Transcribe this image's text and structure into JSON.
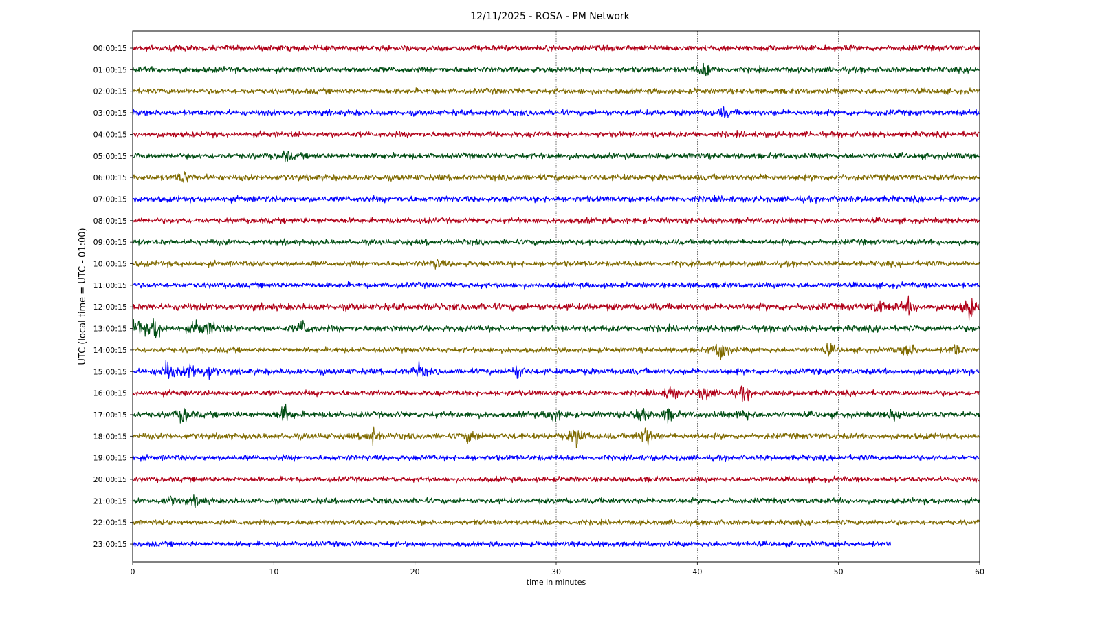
{
  "chart_data": {
    "type": "line",
    "title": "12/11/2025 - ROSA - PM Network",
    "xlabel": "time in minutes",
    "ylabel": "UTC (local time = UTC - 01:00)",
    "xlim": [
      0,
      60
    ],
    "xticks": [
      "0",
      "10",
      "20",
      "30",
      "40",
      "50",
      "60"
    ],
    "grid": "vertical dotted lines at 10-minute intervals",
    "color_cycle": [
      "#b00018",
      "#004d13",
      "#7f6a00",
      "#0000ff"
    ],
    "series": [
      {
        "name": "00:00:15",
        "end_minute": 60,
        "amplitude": 0.18,
        "events": []
      },
      {
        "name": "01:00:15",
        "end_minute": 60,
        "amplitude": 0.18,
        "events": [
          {
            "at": 40.6,
            "strength": 0.45
          }
        ]
      },
      {
        "name": "02:00:15",
        "end_minute": 60,
        "amplitude": 0.17,
        "events": []
      },
      {
        "name": "03:00:15",
        "end_minute": 60,
        "amplitude": 0.18,
        "events": [
          {
            "at": 41.9,
            "strength": 0.3
          }
        ]
      },
      {
        "name": "04:00:15",
        "end_minute": 60,
        "amplitude": 0.18,
        "events": []
      },
      {
        "name": "05:00:15",
        "end_minute": 60,
        "amplitude": 0.18,
        "events": [
          {
            "at": 10.9,
            "strength": 0.3
          }
        ]
      },
      {
        "name": "06:00:15",
        "end_minute": 60,
        "amplitude": 0.19,
        "events": [
          {
            "at": 3.6,
            "strength": 0.4
          }
        ]
      },
      {
        "name": "07:00:15",
        "end_minute": 60,
        "amplitude": 0.19,
        "events": []
      },
      {
        "name": "08:00:15",
        "end_minute": 60,
        "amplitude": 0.18,
        "events": []
      },
      {
        "name": "09:00:15",
        "end_minute": 60,
        "amplitude": 0.18,
        "events": []
      },
      {
        "name": "10:00:15",
        "end_minute": 60,
        "amplitude": 0.18,
        "events": [
          {
            "at": 21.6,
            "strength": 0.3
          }
        ]
      },
      {
        "name": "11:00:15",
        "end_minute": 60,
        "amplitude": 0.18,
        "events": []
      },
      {
        "name": "12:00:15",
        "end_minute": 60,
        "amplitude": 0.22,
        "events": [
          {
            "at": 52.9,
            "strength": 0.45
          },
          {
            "at": 55.0,
            "strength": 0.45
          },
          {
            "at": 59.3,
            "strength": 0.7
          }
        ]
      },
      {
        "name": "13:00:15",
        "end_minute": 60,
        "amplitude": 0.2,
        "events": [
          {
            "at": 0.3,
            "strength": 0.6
          },
          {
            "at": 1.6,
            "strength": 0.9
          },
          {
            "at": 4.5,
            "strength": 0.45
          },
          {
            "at": 5.6,
            "strength": 0.45
          },
          {
            "at": 12.1,
            "strength": 0.5
          }
        ]
      },
      {
        "name": "14:00:15",
        "end_minute": 60,
        "amplitude": 0.17,
        "events": [
          {
            "at": 41.7,
            "strength": 0.8
          },
          {
            "at": 49.3,
            "strength": 0.35
          },
          {
            "at": 55.0,
            "strength": 0.5
          },
          {
            "at": 58.3,
            "strength": 0.4
          }
        ]
      },
      {
        "name": "15:00:15",
        "end_minute": 60,
        "amplitude": 0.19,
        "events": [
          {
            "at": 2.4,
            "strength": 0.7
          },
          {
            "at": 4.1,
            "strength": 0.6
          },
          {
            "at": 5.4,
            "strength": 0.45
          },
          {
            "at": 20.3,
            "strength": 0.45
          },
          {
            "at": 27.3,
            "strength": 0.45
          }
        ]
      },
      {
        "name": "16:00:15",
        "end_minute": 60,
        "amplitude": 0.18,
        "events": [
          {
            "at": 38.1,
            "strength": 0.5
          },
          {
            "at": 40.6,
            "strength": 0.45
          },
          {
            "at": 43.3,
            "strength": 0.45
          }
        ]
      },
      {
        "name": "17:00:15",
        "end_minute": 60,
        "amplitude": 0.2,
        "events": [
          {
            "at": 3.6,
            "strength": 0.55
          },
          {
            "at": 10.8,
            "strength": 0.6
          },
          {
            "at": 29.8,
            "strength": 0.5
          },
          {
            "at": 36.0,
            "strength": 0.5
          },
          {
            "at": 37.9,
            "strength": 0.45
          },
          {
            "at": 43.3,
            "strength": 0.4
          },
          {
            "at": 54.0,
            "strength": 0.45
          }
        ]
      },
      {
        "name": "18:00:15",
        "end_minute": 60,
        "amplitude": 0.2,
        "events": [
          {
            "at": 17.0,
            "strength": 0.55
          },
          {
            "at": 24.0,
            "strength": 0.45
          },
          {
            "at": 31.5,
            "strength": 0.75
          },
          {
            "at": 36.4,
            "strength": 0.7
          }
        ]
      },
      {
        "name": "19:00:15",
        "end_minute": 60,
        "amplitude": 0.18,
        "events": []
      },
      {
        "name": "20:00:15",
        "end_minute": 60,
        "amplitude": 0.17,
        "events": []
      },
      {
        "name": "21:00:15",
        "end_minute": 60,
        "amplitude": 0.18,
        "events": [
          {
            "at": 2.6,
            "strength": 0.35
          },
          {
            "at": 4.5,
            "strength": 0.3
          }
        ]
      },
      {
        "name": "22:00:15",
        "end_minute": 60,
        "amplitude": 0.17,
        "events": []
      },
      {
        "name": "23:00:15",
        "end_minute": 53.7,
        "amplitude": 0.17,
        "events": []
      }
    ]
  }
}
